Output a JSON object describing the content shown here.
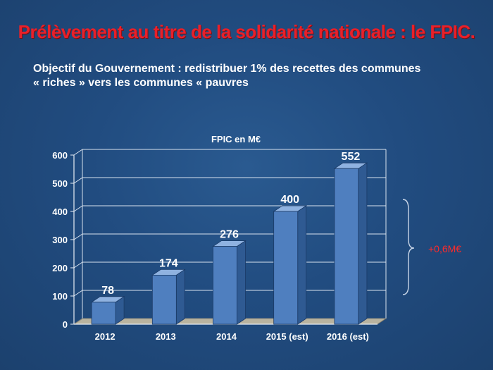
{
  "slide": {
    "title": "Prélèvement au titre de la solidarité nationale : le FPIC.",
    "subtitle_line1": "Objectif du Gouvernement : redistribuer 1% des recettes des communes",
    "subtitle_line2": "« riches » vers les communes « pauvres",
    "annotation": "+0,6M€"
  },
  "colors": {
    "background": "#1f4778",
    "title": "#e8202a",
    "bar_front": "#4f7fbf",
    "bar_side": "#2f5a92",
    "bar_top": "#8fb2e0",
    "annotation": "#ff2a2a"
  },
  "chart_data": {
    "type": "bar",
    "title": "FPIC en M€",
    "categories": [
      "2012",
      "2013",
      "2014",
      "2015 (est)",
      "2016 (est)"
    ],
    "values": [
      78,
      174,
      276,
      400,
      552
    ],
    "data_labels": [
      "78",
      "174",
      "276",
      "400",
      "552"
    ],
    "xlabel": "",
    "ylabel": "",
    "ylim": [
      0,
      600
    ],
    "yticks": [
      0,
      100,
      200,
      300,
      400,
      500,
      600
    ],
    "grid": true,
    "legend": "none",
    "style": "3d"
  }
}
